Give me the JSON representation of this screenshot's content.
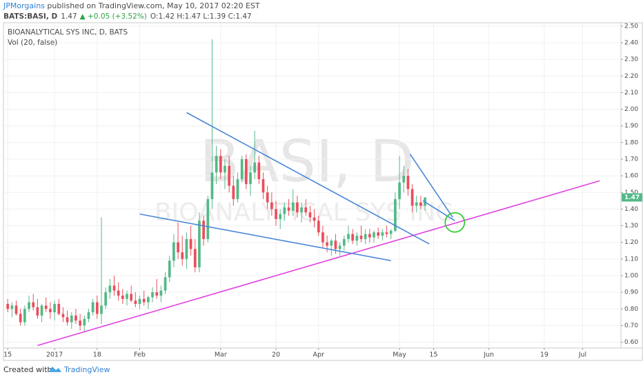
{
  "header": {
    "author": "JPMorgains",
    "published": " published on TradingView.com, May 10, 2017 02:20 EST",
    "symbol": "BATS:BASI, D",
    "price": "1.47",
    "change": "▲ +0.05 (+3.52%)",
    "ohlc": "O:1.42 H:1.47 L:1.39 C:1.47"
  },
  "footer": {
    "created": "Created with",
    "brand": "TradingView"
  },
  "chart_data": {
    "type": "candlestick",
    "title": "BIOANALYTICAL SYS INC, D, BATS",
    "subtitle": "Vol (20, false)",
    "watermark": "BASI, D",
    "watermark_sub": "BIOANALYTICAL SYS INC",
    "up_color": "#53b987",
    "down_color": "#eb4d5c",
    "open": [
      0.83,
      0.8,
      0.82,
      0.77,
      0.72,
      0.8,
      0.84,
      0.81,
      0.76,
      0.82,
      0.8,
      0.78,
      0.83,
      0.77,
      0.75,
      0.72,
      0.76,
      0.73,
      0.7,
      0.74,
      0.78,
      0.84,
      0.77,
      0.82,
      0.9,
      0.94,
      0.91,
      0.88,
      0.86,
      0.89,
      0.85,
      0.83,
      0.86,
      0.84,
      0.87,
      0.9,
      0.88,
      0.91,
      0.99,
      1.09,
      1.2,
      1.14,
      1.1,
      1.22,
      1.16,
      1.05,
      1.33,
      1.22,
      1.46,
      1.62,
      1.72,
      1.62,
      1.66,
      1.54,
      1.46,
      1.58,
      1.7,
      1.55,
      1.62,
      1.68,
      1.58,
      1.5,
      1.44,
      1.4,
      1.34,
      1.37,
      1.41,
      1.39,
      1.44,
      1.38,
      1.41,
      1.38,
      1.35,
      1.33,
      1.26,
      1.2,
      1.18,
      1.21,
      1.16,
      1.18,
      1.22,
      1.25,
      1.21,
      1.24,
      1.22,
      1.25,
      1.23,
      1.26,
      1.24,
      1.26,
      1.25,
      1.27,
      1.46,
      1.56,
      1.6,
      1.52,
      1.42,
      1.44,
      1.42
    ],
    "high": [
      0.86,
      0.84,
      0.85,
      0.8,
      0.82,
      0.88,
      0.89,
      0.86,
      0.83,
      0.87,
      0.84,
      0.85,
      0.86,
      0.81,
      0.79,
      0.78,
      0.8,
      0.77,
      0.76,
      0.8,
      0.86,
      0.88,
      1.35,
      0.93,
      0.98,
      1.0,
      0.96,
      0.92,
      0.91,
      0.94,
      0.9,
      0.88,
      0.91,
      0.88,
      0.93,
      0.98,
      0.94,
      1.02,
      1.12,
      1.25,
      1.32,
      1.24,
      1.26,
      1.3,
      1.22,
      1.38,
      1.36,
      1.48,
      2.42,
      1.78,
      1.76,
      1.7,
      1.72,
      1.6,
      1.62,
      1.72,
      1.73,
      1.66,
      1.87,
      1.72,
      1.62,
      1.54,
      1.5,
      1.45,
      1.4,
      1.44,
      1.46,
      1.52,
      1.48,
      1.44,
      1.46,
      1.42,
      1.4,
      1.36,
      1.3,
      1.24,
      1.22,
      1.25,
      1.2,
      1.24,
      1.3,
      1.28,
      1.26,
      1.3,
      1.28,
      1.28,
      1.27,
      1.29,
      1.28,
      1.3,
      1.28,
      1.5,
      1.72,
      1.66,
      1.64,
      1.55,
      1.48,
      1.48,
      1.47
    ],
    "low": [
      0.78,
      0.75,
      0.76,
      0.7,
      0.7,
      0.78,
      0.79,
      0.74,
      0.72,
      0.78,
      0.74,
      0.73,
      0.76,
      0.72,
      0.7,
      0.68,
      0.71,
      0.67,
      0.66,
      0.72,
      0.76,
      0.74,
      0.71,
      0.8,
      0.86,
      0.88,
      0.85,
      0.83,
      0.82,
      0.84,
      0.81,
      0.8,
      0.82,
      0.8,
      0.84,
      0.86,
      0.84,
      0.89,
      0.96,
      1.05,
      1.1,
      1.06,
      1.04,
      1.12,
      1.02,
      1.02,
      1.18,
      1.2,
      1.4,
      1.55,
      1.58,
      1.52,
      1.5,
      1.42,
      1.44,
      1.56,
      1.52,
      1.48,
      1.58,
      1.55,
      1.46,
      1.4,
      1.36,
      1.3,
      1.28,
      1.33,
      1.36,
      1.36,
      1.35,
      1.32,
      1.36,
      1.32,
      1.29,
      1.24,
      1.17,
      1.14,
      1.12,
      1.13,
      1.12,
      1.15,
      1.2,
      1.19,
      1.18,
      1.2,
      1.19,
      1.2,
      1.2,
      1.22,
      1.21,
      1.23,
      1.22,
      1.26,
      1.4,
      1.5,
      1.48,
      1.38,
      1.38,
      1.4,
      1.39
    ],
    "close": [
      0.8,
      0.82,
      0.77,
      0.72,
      0.8,
      0.84,
      0.81,
      0.76,
      0.82,
      0.8,
      0.78,
      0.83,
      0.77,
      0.75,
      0.72,
      0.76,
      0.73,
      0.7,
      0.74,
      0.78,
      0.84,
      0.77,
      0.82,
      0.9,
      0.94,
      0.91,
      0.88,
      0.86,
      0.89,
      0.85,
      0.83,
      0.86,
      0.84,
      0.87,
      0.9,
      0.88,
      0.91,
      0.99,
      1.09,
      1.2,
      1.14,
      1.1,
      1.22,
      1.16,
      1.05,
      1.33,
      1.22,
      1.46,
      1.62,
      1.72,
      1.62,
      1.66,
      1.54,
      1.46,
      1.58,
      1.7,
      1.55,
      1.62,
      1.68,
      1.58,
      1.5,
      1.44,
      1.4,
      1.34,
      1.37,
      1.41,
      1.39,
      1.44,
      1.38,
      1.41,
      1.38,
      1.35,
      1.33,
      1.26,
      1.2,
      1.18,
      1.21,
      1.16,
      1.18,
      1.22,
      1.25,
      1.21,
      1.24,
      1.22,
      1.25,
      1.23,
      1.26,
      1.24,
      1.26,
      1.25,
      1.27,
      1.46,
      1.56,
      1.6,
      1.52,
      1.42,
      1.44,
      1.42,
      1.47
    ],
    "xlim": [
      -1,
      144
    ],
    "xticks": [
      {
        "value": 0,
        "label": "15"
      },
      {
        "value": 11,
        "label": "2017"
      },
      {
        "value": 21,
        "label": "18"
      },
      {
        "value": 31,
        "label": "Feb"
      },
      {
        "value": 50,
        "label": "Mar"
      },
      {
        "value": 63,
        "label": "20"
      },
      {
        "value": 73,
        "label": "Apr"
      },
      {
        "value": 92,
        "label": "May"
      },
      {
        "value": 100,
        "label": "15"
      },
      {
        "value": 113,
        "label": "Jun"
      },
      {
        "value": 126,
        "label": "19"
      },
      {
        "value": 135,
        "label": "Jul"
      }
    ],
    "ylim": [
      0.565,
      2.52
    ],
    "yticks": [
      {
        "value": 0.6,
        "label": "0.60"
      },
      {
        "value": 0.7,
        "label": "0.70"
      },
      {
        "value": 0.8,
        "label": "0.80"
      },
      {
        "value": 0.9,
        "label": "0.90"
      },
      {
        "value": 1.0,
        "label": "1.00"
      },
      {
        "value": 1.1,
        "label": "1.10"
      },
      {
        "value": 1.2,
        "label": "1.20"
      },
      {
        "value": 1.3,
        "label": "1.30"
      },
      {
        "value": 1.4,
        "label": "1.40"
      },
      {
        "value": 1.5,
        "label": "1.50"
      },
      {
        "value": 1.6,
        "label": "1.60"
      },
      {
        "value": 1.7,
        "label": "1.70"
      },
      {
        "value": 1.8,
        "label": "1.80"
      },
      {
        "value": 1.9,
        "label": "1.90"
      },
      {
        "value": 2.0,
        "label": "2.00"
      },
      {
        "value": 2.1,
        "label": "2.10"
      },
      {
        "value": 2.2,
        "label": "2.20"
      },
      {
        "value": 2.3,
        "label": "2.30"
      },
      {
        "value": 2.4,
        "label": "2.40"
      },
      {
        "value": 2.5,
        "label": "2.50"
      }
    ],
    "grid": true,
    "drawings": [
      {
        "color": "#e040e0",
        "x": [
          7,
          139
        ],
        "y": [
          0.58,
          1.57
        ]
      },
      {
        "color": "#4a86d8",
        "x": [
          42,
          99
        ],
        "y": [
          1.98,
          1.19
        ]
      },
      {
        "color": "#4a86d8",
        "x": [
          31,
          90
        ],
        "y": [
          1.37,
          1.09
        ]
      },
      {
        "color": "#4a86d8",
        "x": [
          94.5,
          104.5
        ],
        "y": [
          1.73,
          1.35
        ]
      },
      {
        "color": "#4a86d8",
        "x": [
          97.5,
          105
        ],
        "y": [
          1.45,
          1.33
        ]
      }
    ],
    "marker": {
      "color": "#33cc33",
      "x": 105,
      "y": 1.32
    }
  }
}
